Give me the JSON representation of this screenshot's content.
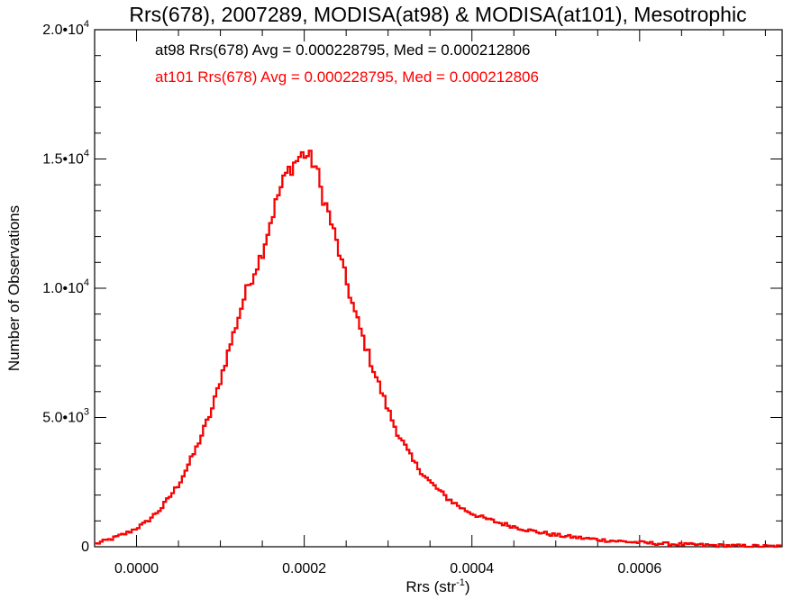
{
  "chart_data": {
    "type": "histogram",
    "title": "Rrs(678), 2007289, MODISA(at98) & MODISA(at101), Mesotrophic",
    "xlabel": "Rrs (str",
    "xlabel_superscript": "-1",
    "xlabel_suffix": ")",
    "ylabel": "Number of Observations",
    "xlim": [
      -5e-05,
      0.00077
    ],
    "ylim": [
      0,
      20000
    ],
    "grid": false,
    "x_ticks": [
      {
        "value": 0.0,
        "label": "0.0000"
      },
      {
        "value": 0.0002,
        "label": "0.0002"
      },
      {
        "value": 0.0004,
        "label": "0.0004"
      },
      {
        "value": 0.0006,
        "label": "0.0006"
      }
    ],
    "y_ticks": [
      {
        "value": 0,
        "mantissa": "0",
        "exponent": ""
      },
      {
        "value": 5000,
        "mantissa": "5.0•10",
        "exponent": "3"
      },
      {
        "value": 10000,
        "mantissa": "1.0•10",
        "exponent": "4"
      },
      {
        "value": 15000,
        "mantissa": "1.5•10",
        "exponent": "4"
      },
      {
        "value": 20000,
        "mantissa": "2.0•10",
        "exponent": "4"
      }
    ],
    "annotations": [
      {
        "text": "at98 Rrs(678) Avg = 0.000228795, Med = 0.000212806",
        "color": "#000000"
      },
      {
        "text": "at101 Rrs(678) Avg = 0.000228795, Med = 0.000212806",
        "color": "#ff0000"
      }
    ],
    "series": [
      {
        "name": "at98",
        "color": "#000000",
        "x": [
          -5e-05,
          -3e-05,
          -1e-05,
          1e-05,
          3e-05,
          5e-05,
          7e-05,
          9e-05,
          0.00011,
          0.00013,
          0.00015,
          0.00016,
          0.00017,
          0.00018,
          0.00019,
          0.000195,
          0.0002,
          0.000205,
          0.00021,
          0.000215,
          0.00022,
          0.00023,
          0.00024,
          0.00025,
          0.00026,
          0.00027,
          0.00028,
          0.00029,
          0.0003,
          0.00031,
          0.00032,
          0.00033,
          0.00035,
          0.00037,
          0.00039,
          0.00041,
          0.00043,
          0.00045,
          0.00047,
          0.0005,
          0.00053,
          0.00056,
          0.0006,
          0.00064,
          0.00068,
          0.00072,
          0.00077
        ],
        "y": [
          100,
          300,
          550,
          900,
          1500,
          2400,
          3700,
          5300,
          7600,
          9800,
          11400,
          12600,
          13700,
          14500,
          14900,
          15100,
          15200,
          15100,
          14900,
          14600,
          13800,
          12800,
          11600,
          10300,
          9100,
          8100,
          7100,
          6200,
          5300,
          4500,
          3900,
          3300,
          2500,
          1900,
          1450,
          1150,
          950,
          780,
          620,
          450,
          340,
          250,
          160,
          100,
          60,
          30,
          10
        ]
      },
      {
        "name": "at101",
        "color": "#ff0000",
        "x": [
          -5e-05,
          -3e-05,
          -1e-05,
          1e-05,
          3e-05,
          5e-05,
          7e-05,
          9e-05,
          0.00011,
          0.00013,
          0.00015,
          0.00016,
          0.00017,
          0.00018,
          0.00019,
          0.000195,
          0.0002,
          0.000205,
          0.00021,
          0.000215,
          0.00022,
          0.00023,
          0.00024,
          0.00025,
          0.00026,
          0.00027,
          0.00028,
          0.00029,
          0.0003,
          0.00031,
          0.00032,
          0.00033,
          0.00035,
          0.00037,
          0.00039,
          0.00041,
          0.00043,
          0.00045,
          0.00047,
          0.0005,
          0.00053,
          0.00056,
          0.0006,
          0.00064,
          0.00068,
          0.00072,
          0.00077
        ],
        "y": [
          100,
          300,
          550,
          900,
          1500,
          2400,
          3700,
          5300,
          7600,
          9800,
          11400,
          12600,
          13700,
          14500,
          14900,
          15100,
          15200,
          15100,
          14900,
          14600,
          13800,
          12800,
          11600,
          10300,
          9100,
          8100,
          7100,
          6200,
          5300,
          4500,
          3900,
          3300,
          2500,
          1900,
          1450,
          1150,
          950,
          780,
          620,
          450,
          340,
          250,
          160,
          100,
          60,
          30,
          10
        ]
      }
    ]
  }
}
